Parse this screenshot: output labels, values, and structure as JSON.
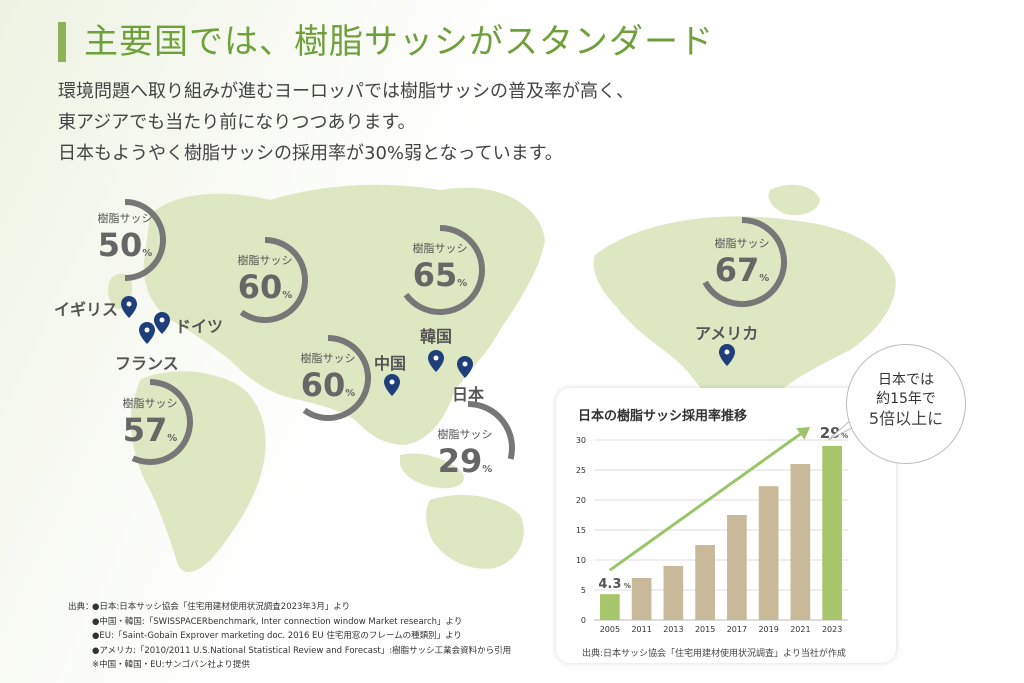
{
  "title": "主要国では、樹脂サッシがスタンダード",
  "intro": [
    "環境問題へ取り組みが進むヨーロッパでは樹脂サッシの普及率が高く、",
    "東アジアでも当たり前になりつつあります。",
    "日本もようやく樹脂サッシの採用率が30%弱となっています。"
  ],
  "rings": [
    {
      "label": "樹脂サッシ",
      "value": "50",
      "unit": "%",
      "fraction": 0.5
    },
    {
      "label": "樹脂サッシ",
      "value": "60",
      "unit": "%",
      "fraction": 0.6
    },
    {
      "label": "樹脂サッシ",
      "value": "65",
      "unit": "%",
      "fraction": 0.65
    },
    {
      "label": "樹脂サッシ",
      "value": "67",
      "unit": "%",
      "fraction": 0.67
    },
    {
      "label": "樹脂サッシ",
      "value": "60",
      "unit": "%",
      "fraction": 0.6
    },
    {
      "label": "樹脂サッシ",
      "value": "57",
      "unit": "%",
      "fraction": 0.57
    },
    {
      "label": "樹脂サッシ",
      "value": "29",
      "unit": "%",
      "fraction": 0.29
    }
  ],
  "countries": {
    "uk": "イギリス",
    "germany": "ドイツ",
    "france": "フランス",
    "china": "中国",
    "korea": "韓国",
    "japan": "日本",
    "usa": "アメリカ"
  },
  "bubble": {
    "line1": "日本では",
    "line2": "約15年で",
    "line3": "5倍以上に"
  },
  "chart_data": {
    "type": "bar",
    "title": "日本の樹脂サッシ採用率推移",
    "categories": [
      "2005",
      "2011",
      "2013",
      "2015",
      "2017",
      "2019",
      "2021",
      "2023"
    ],
    "values": [
      4.3,
      7,
      9,
      12.5,
      17.5,
      22.3,
      26,
      29
    ],
    "ylim": [
      0,
      30
    ],
    "yticks": [
      0,
      5,
      10,
      15,
      20,
      25,
      30
    ],
    "first_label": "4.3",
    "last_label": "29",
    "label_unit": "%",
    "colors": {
      "highlight": "#a7c66c",
      "normal": "#c8b998",
      "trend": "#9cc56a"
    },
    "grid": true,
    "source": "出典:日本サッシ協会「住宅用建材使用状況調査」より当社が作成"
  },
  "sources": {
    "head": "出典：",
    "lines": [
      "●日本:日本サッシ協会「住宅用建材使用状況調査2023年3月」より",
      "●中国・韓国:「SWISSPACERbenchmark, Inter connection window Market research」より",
      "●EU:「Saint-Gobain Exprover marketing doc. 2016 EU 住宅用窓のフレームの種類別」より",
      "●アメリカ:「2010/2011 U.S.National Statistical Review and Forecast」:樹脂サッシ工業会資料から引用",
      "※中国・韓国・EU:サンゴバン社より提供"
    ]
  },
  "colors": {
    "accent": "#6fa03c",
    "map": "#dde8c3",
    "ring": "#777777",
    "pin": "#1f3f7a"
  }
}
